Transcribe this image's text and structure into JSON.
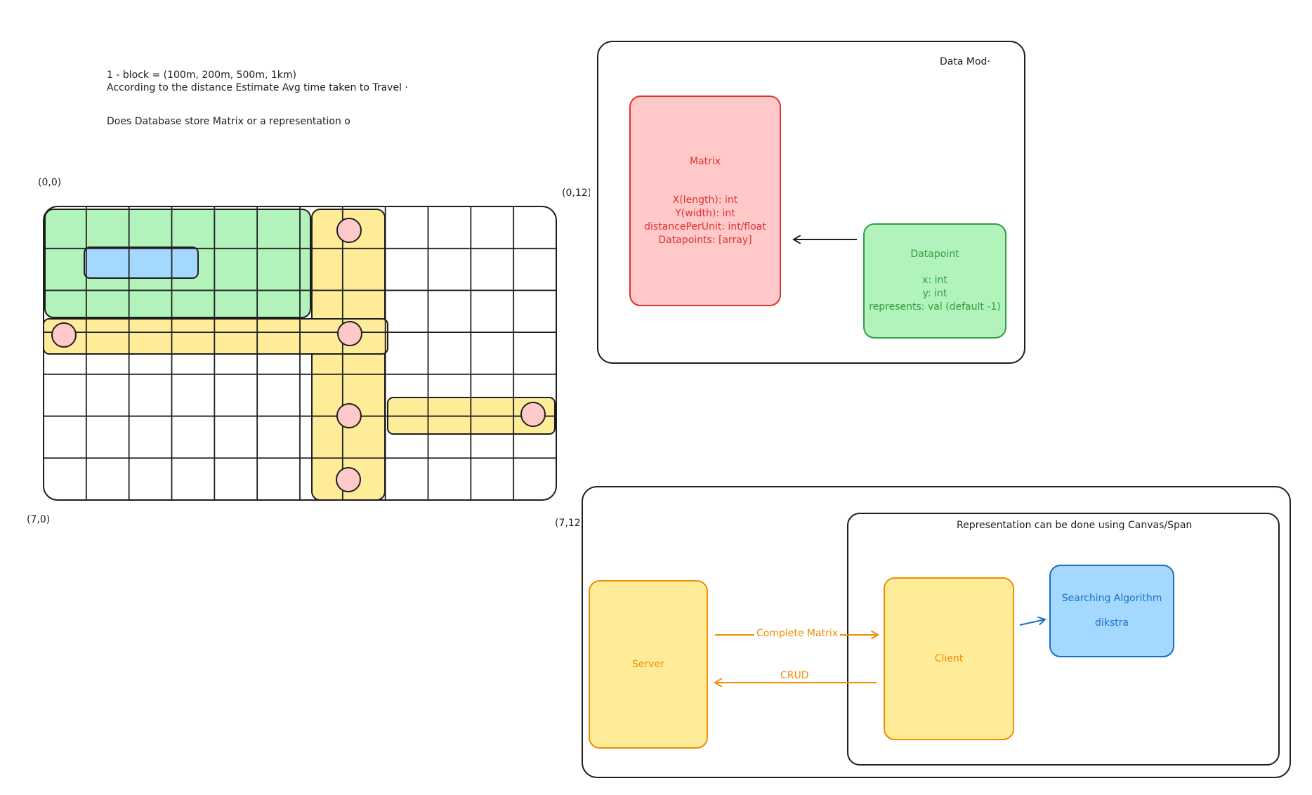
{
  "notes": {
    "line1": "1 - block = (100m, 200m, 500m, 1km)",
    "line2": "According to the distance Estimate Avg time taken to Travel ·",
    "line3": "Does Database store Matrix or a representation o"
  },
  "grid": {
    "coord_top_left": "(0,0)",
    "coord_top_right": "(0,12)",
    "coord_bottom_left": "(7,0)",
    "coord_bottom_right": "(7,12)",
    "rows": 7,
    "cols": 12
  },
  "data_model": {
    "title": "Data Mod·",
    "matrix": {
      "title": "Matrix",
      "fields": [
        "X(length): int",
        "Y(width): int",
        "distancePerUnit: int/float",
        "Datapoints: [array]"
      ]
    },
    "datapoint": {
      "title": "Datapoint",
      "fields": [
        "x: int",
        "y: int",
        "represents: val (default -1)"
      ]
    }
  },
  "architecture": {
    "representation_title": "Representation can be done using Canvas/Span",
    "server_label": "Server",
    "client_label": "Client",
    "search": {
      "title": "Searching Algorithm",
      "subtitle": "dikstra"
    },
    "arrow_complete_matrix": "Complete Matrix",
    "arrow_crud": "CRUD"
  },
  "colors": {
    "red_fill": "#ffc9c9",
    "red_stroke": "#e03131",
    "green_fill": "#b2f2bb",
    "green_stroke": "#2f9e44",
    "yellow_fill": "#ffec99",
    "orange_stroke": "#f08c00",
    "blue_fill": "#a5d8ff",
    "blue_stroke": "#1971c2",
    "ink": "#1e1e1e"
  }
}
